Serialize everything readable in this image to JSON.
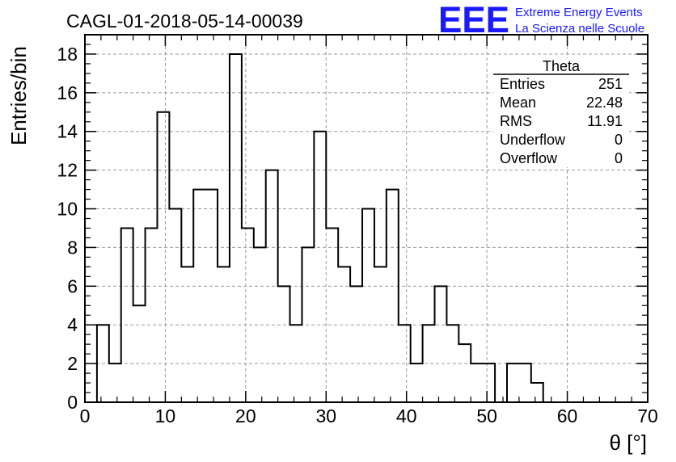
{
  "header": {
    "run_title": "CAGL-01-2018-05-14-00039",
    "logo_text": "EEE",
    "org_line1": "Extreme Energy Events",
    "org_line2": "La Scienza nelle Scuole"
  },
  "stats": {
    "title": "Theta",
    "rows": [
      {
        "label": "Entries",
        "value": "251"
      },
      {
        "label": "Mean",
        "value": "22.48"
      },
      {
        "label": "RMS",
        "value": "11.91"
      },
      {
        "label": "Underflow",
        "value": "0"
      },
      {
        "label": "Overflow",
        "value": "0"
      }
    ]
  },
  "colors": {
    "logo": "#1a1aff",
    "line": "#000000",
    "grid": "#9a9a9a"
  },
  "chart_data": {
    "type": "histogram",
    "xlabel": "θ [°]",
    "ylabel": "Entries/bin",
    "xlim": [
      0,
      70
    ],
    "ylim": [
      0,
      19
    ],
    "grid": true,
    "x_ticks": [
      0,
      10,
      20,
      30,
      40,
      50,
      60,
      70
    ],
    "y_ticks": [
      0,
      2,
      4,
      6,
      8,
      10,
      12,
      14,
      16,
      18
    ],
    "bin_width": 1.5,
    "x_start": 0,
    "values": [
      0,
      4,
      2,
      9,
      5,
      9,
      15,
      10,
      7,
      11,
      11,
      7,
      18,
      9,
      8,
      12,
      6,
      4,
      8,
      14,
      9,
      7,
      6,
      10,
      7,
      11,
      4,
      2,
      4,
      6,
      4,
      3,
      2,
      2,
      0,
      2,
      2,
      1,
      0
    ]
  }
}
